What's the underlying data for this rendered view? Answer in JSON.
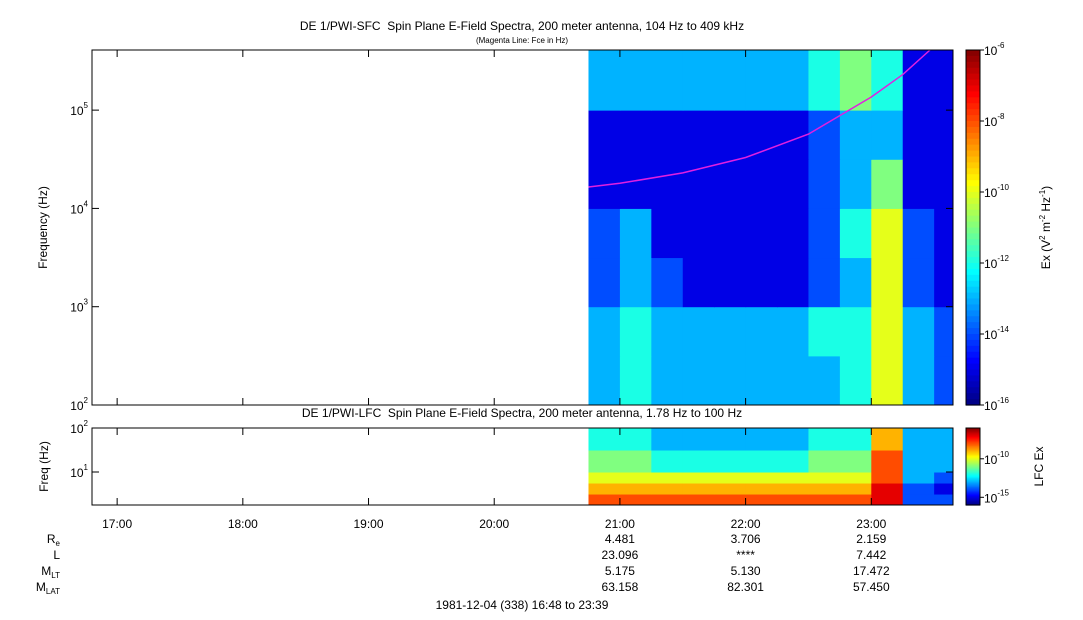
{
  "chart_data": [
    {
      "type": "heatmap",
      "title": "DE 1/PWI-SFC  Spin Plane E-Field Spectra, 200 meter antenna, 104 Hz to 409 kHz",
      "subtitle": "(Magenta Line: Fce in Hz)",
      "ylabel": "Frequency (Hz)",
      "yscale": "log",
      "xlim": [
        1008,
        1419
      ],
      "ylim": [
        100,
        409000
      ],
      "yticks": [
        {
          "value": 100,
          "label": "10",
          "exponent": "2"
        },
        {
          "value": 1000,
          "label": "10",
          "exponent": "3"
        },
        {
          "value": 10000,
          "label": "10",
          "exponent": "4"
        },
        {
          "value": 100000,
          "label": "10",
          "exponent": "5"
        }
      ],
      "x_edges": [
        1245,
        1260,
        1275,
        1290,
        1305,
        1320,
        1335,
        1350,
        1365,
        1380,
        1395,
        1410,
        1419
      ],
      "y_edges": [
        100,
        316,
        1000,
        3162,
        10000,
        31623,
        100000,
        409000
      ],
      "values": [
        [
          1e-13,
          1e-12,
          1e-13,
          1e-13,
          1e-13,
          1e-13,
          1e-13,
          1e-13,
          1e-12,
          1e-10,
          1e-13,
          1e-14
        ],
        [
          1e-13,
          1e-12,
          1e-13,
          1e-13,
          1e-13,
          1e-13,
          1e-13,
          1e-12,
          1e-12,
          1e-10,
          1e-13,
          1e-14
        ],
        [
          1e-14,
          1e-13,
          1e-14,
          1e-15,
          1e-15,
          1e-15,
          1e-15,
          1e-14,
          1e-13,
          1e-10,
          1e-14,
          1e-15
        ],
        [
          1e-14,
          1e-13,
          1e-15,
          1e-15,
          1e-15,
          1e-15,
          1e-15,
          1e-14,
          1e-12,
          1e-10,
          1e-14,
          1e-15
        ],
        [
          1e-15,
          1e-15,
          1e-15,
          1e-15,
          1e-15,
          1e-15,
          1e-15,
          1e-14,
          1e-13,
          1e-11,
          1e-15,
          1e-15
        ],
        [
          1e-15,
          1e-15,
          1e-15,
          1e-15,
          1e-15,
          1e-15,
          1e-15,
          1e-14,
          1e-13,
          1e-13,
          1e-15,
          1e-15
        ],
        [
          1e-13,
          1e-13,
          1e-13,
          1e-13,
          1e-13,
          1e-13,
          1e-13,
          1e-12,
          1e-11,
          1e-12,
          1e-15,
          1e-15
        ]
      ],
      "series": [
        {
          "color": "#e020e0",
          "x": [
            1245,
            1260,
            1290,
            1320,
            1350,
            1380,
            1395,
            1408
          ],
          "values": [
            16500,
            18000,
            23000,
            33000,
            57000,
            136000,
            230000,
            409000
          ]
        }
      ],
      "colorbar": {
        "clim": [
          1e-16,
          1e-06
        ],
        "label": [
          {
            "text": "Ex (V"
          },
          {
            "text": "2",
            "sup": true
          },
          {
            "text": " m"
          },
          {
            "text": "-2",
            "sup": true
          },
          {
            "text": " Hz"
          },
          {
            "text": "-1",
            "sup": true
          },
          {
            "text": ")"
          }
        ],
        "ticks": [
          {
            "value": 1e-06,
            "label": "10",
            "exponent": "-6"
          },
          {
            "value": 1e-08,
            "label": "10",
            "exponent": "-8"
          },
          {
            "value": 1e-10,
            "label": "10",
            "exponent": "-10"
          },
          {
            "value": 1e-12,
            "label": "10",
            "exponent": "-12"
          },
          {
            "value": 1e-14,
            "label": "10",
            "exponent": "-14"
          },
          {
            "value": 1e-16,
            "label": "10",
            "exponent": "-16"
          }
        ]
      }
    },
    {
      "type": "heatmap",
      "title": "DE 1/PWI-LFC  Spin Plane E-Field Spectra, 200 meter antenna, 1.78 Hz to 100 Hz",
      "ylabel": "Freq (Hz)",
      "yscale": "log",
      "xlim": [
        1008,
        1419
      ],
      "ylim": [
        1.78,
        100
      ],
      "xticks": [
        {
          "value": 1020,
          "label": "17:00"
        },
        {
          "value": 1080,
          "label": "18:00"
        },
        {
          "value": 1140,
          "label": "19:00"
        },
        {
          "value": 1200,
          "label": "20:00"
        },
        {
          "value": 1260,
          "label": "21:00"
        },
        {
          "value": 1320,
          "label": "22:00"
        },
        {
          "value": 1380,
          "label": "23:00"
        }
      ],
      "yticks": [
        {
          "value": 10,
          "label": "10",
          "exponent": "1"
        },
        {
          "value": 100,
          "label": "10",
          "exponent": "2"
        }
      ],
      "x_edges": [
        1245,
        1260,
        1275,
        1290,
        1305,
        1320,
        1335,
        1350,
        1365,
        1380,
        1395,
        1410,
        1419
      ],
      "y_edges": [
        1.78,
        3.16,
        5.62,
        10,
        31.6,
        100
      ],
      "values": [
        [
          1e-08,
          1e-08,
          1e-08,
          1e-08,
          1e-08,
          1e-08,
          1e-08,
          1e-08,
          1e-08,
          1e-07,
          1e-14,
          1e-14
        ],
        [
          1e-09,
          1e-09,
          1e-09,
          1e-09,
          1e-09,
          1e-09,
          1e-09,
          1e-09,
          1e-09,
          1e-07,
          1e-14,
          1e-15
        ],
        [
          1e-10,
          1e-10,
          1e-10,
          1e-10,
          1e-10,
          1e-10,
          1e-10,
          1e-10,
          1e-10,
          1e-08,
          1e-13,
          1e-14
        ],
        [
          1e-11,
          1e-11,
          1e-12,
          1e-12,
          1e-12,
          1e-12,
          1e-12,
          1e-11,
          1e-11,
          1e-08,
          1e-13,
          1e-13
        ],
        [
          1e-12,
          1e-12,
          1e-13,
          1e-13,
          1e-13,
          1e-13,
          1e-13,
          1e-12,
          1e-12,
          1e-09,
          1e-13,
          1e-13
        ]
      ],
      "colorbar": {
        "clim": [
          1e-16,
          1e-06
        ],
        "label": [
          {
            "text": "LFC Ex"
          }
        ],
        "ticks": [
          {
            "value": 1e-10,
            "label": "10",
            "exponent": "-10"
          },
          {
            "value": 1e-15,
            "label": "10",
            "exponent": "-15"
          }
        ]
      }
    }
  ],
  "ephemeris": {
    "rows": [
      {
        "label": "R",
        "sub": "e",
        "values": [
          "4.481",
          "3.706",
          "2.159"
        ]
      },
      {
        "label": "L",
        "values": [
          "23.096",
          "****",
          "7.442"
        ]
      },
      {
        "label": "M",
        "sub": "LT",
        "values": [
          "5.175",
          "5.130",
          "17.472"
        ]
      },
      {
        "label": "M",
        "sub": "LAT",
        "values": [
          "63.158",
          "82.301",
          "57.450"
        ]
      }
    ]
  },
  "footer": "1981-12-04 (338) 16:48 to 23:39"
}
